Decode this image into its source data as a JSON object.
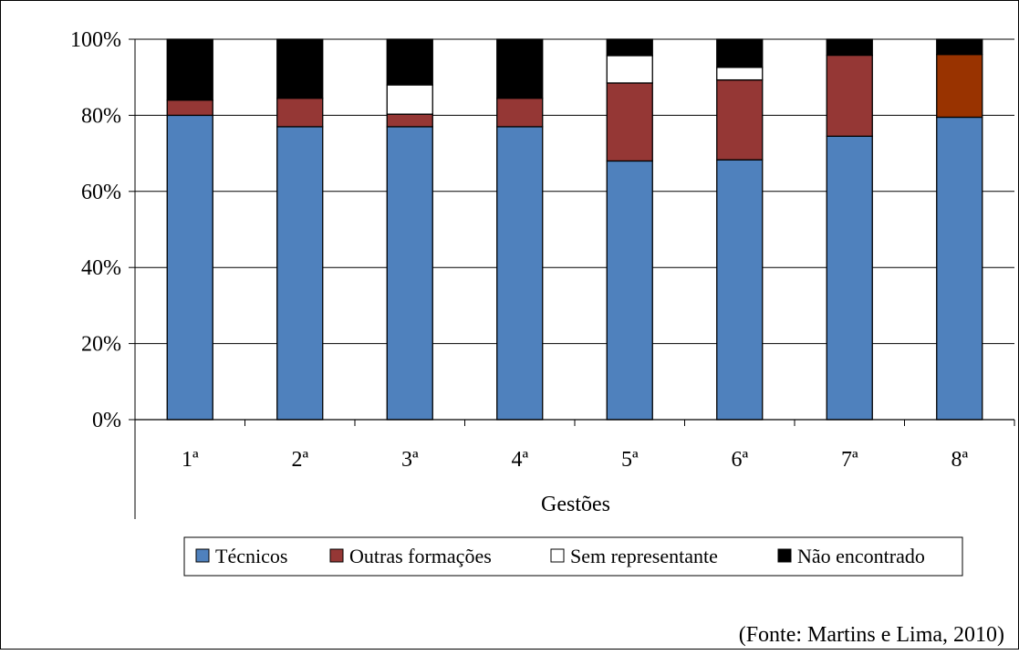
{
  "chart_data": {
    "type": "bar",
    "stacked": true,
    "normalized": true,
    "categories": [
      "1ª",
      "2ª",
      "3ª",
      "4ª",
      "5ª",
      "6ª",
      "7ª",
      "8ª"
    ],
    "series": [
      {
        "name": "Técnicos",
        "color": "#4f81bd",
        "values": [
          80,
          77,
          77,
          77,
          68,
          68.3,
          74.5,
          79.5
        ]
      },
      {
        "name": "Outras formações",
        "color": "#953735",
        "values": [
          4,
          7.5,
          3.3,
          7.5,
          20.5,
          21,
          21.3,
          16.5
        ],
        "point_colors": {
          "7": "#993300"
        }
      },
      {
        "name": "Sem representante",
        "color": "#ffffff",
        "values": [
          0,
          0,
          7.7,
          0,
          7.2,
          3.3,
          0,
          0
        ]
      },
      {
        "name": "Não encontrado",
        "color": "#000000",
        "values": [
          16,
          15.5,
          12,
          15.5,
          4.3,
          7.4,
          4.2,
          4
        ]
      }
    ],
    "xlabel": "Gestões",
    "ylabel": "",
    "ylim": [
      0,
      100
    ],
    "yticks": [
      "0%",
      "20%",
      "40%",
      "60%",
      "80%",
      "100%"
    ],
    "grid": true,
    "legend_position": "bottom",
    "source_note": "(Fonte: Martins e Lima, 2010)"
  }
}
